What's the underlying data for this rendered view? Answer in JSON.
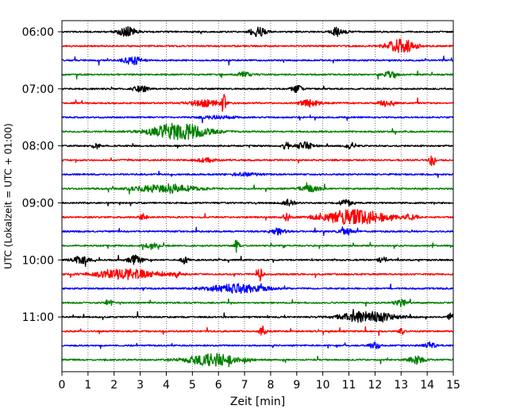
{
  "chart_data": {
    "type": "line",
    "title": "",
    "xlabel": "Zeit  [min]",
    "ylabel": "UTC (Lokalzeit = UTC + 01:00)",
    "xlim": [
      0,
      15
    ],
    "x_ticks": [
      0,
      1,
      2,
      3,
      4,
      5,
      6,
      7,
      8,
      9,
      10,
      11,
      12,
      13,
      14,
      15
    ],
    "x_tick_labels": [
      "0",
      "1",
      "2",
      "3",
      "4",
      "5",
      "6",
      "7",
      "8",
      "9",
      "10",
      "11",
      "12",
      "13",
      "14",
      "15"
    ],
    "y_tick_labels": [
      "06:00",
      "07:00",
      "08:00",
      "09:00",
      "10:00",
      "11:00"
    ],
    "y_tick_traces": [
      0,
      4,
      8,
      12,
      16,
      20
    ],
    "grid": {
      "x": true,
      "y": false,
      "style": "dotted"
    },
    "trace_minutes": 15,
    "colors_cycle": [
      "#000000",
      "#ff0000",
      "#0000ff",
      "#008000"
    ],
    "traces": [
      {
        "start": "06:00",
        "color": "#000000",
        "events": [
          {
            "x": 2.5,
            "amp": 0.5,
            "w": 0.5
          },
          {
            "x": 7.5,
            "amp": 0.55,
            "w": 0.4
          },
          {
            "x": 10.6,
            "amp": 0.5,
            "w": 0.4
          }
        ]
      },
      {
        "start": "06:15",
        "color": "#ff0000",
        "events": [
          {
            "x": 13.0,
            "amp": 0.7,
            "w": 0.8
          }
        ]
      },
      {
        "start": "06:30",
        "color": "#0000ff",
        "events": [
          {
            "x": 2.7,
            "amp": 0.45,
            "w": 0.5
          }
        ]
      },
      {
        "start": "06:45",
        "color": "#008000",
        "events": [
          {
            "x": 7.0,
            "amp": 0.3,
            "w": 0.4
          },
          {
            "x": 12.6,
            "amp": 0.3,
            "w": 0.4
          }
        ]
      },
      {
        "start": "07:00",
        "color": "#000000",
        "events": [
          {
            "x": 3.0,
            "amp": 0.3,
            "w": 0.4
          },
          {
            "x": 9.0,
            "amp": 0.35,
            "w": 0.3
          }
        ]
      },
      {
        "start": "07:15",
        "color": "#ff0000",
        "events": [
          {
            "x": 5.5,
            "amp": 0.35,
            "w": 0.9
          },
          {
            "x": 6.2,
            "amp": 1.3,
            "w": 0.12
          },
          {
            "x": 9.5,
            "amp": 0.35,
            "w": 0.6
          },
          {
            "x": 12.4,
            "amp": 0.3,
            "w": 0.4
          }
        ]
      },
      {
        "start": "07:30",
        "color": "#0000ff",
        "events": [
          {
            "x": 6.0,
            "amp": 0.15,
            "w": 1.0
          }
        ]
      },
      {
        "start": "07:45",
        "color": "#008000",
        "events": [
          {
            "x": 4.5,
            "amp": 0.85,
            "w": 1.6
          }
        ]
      },
      {
        "start": "08:00",
        "color": "#000000",
        "events": [
          {
            "x": 1.3,
            "amp": 0.3,
            "w": 0.2
          },
          {
            "x": 8.6,
            "amp": 0.4,
            "w": 0.2
          },
          {
            "x": 9.3,
            "amp": 0.35,
            "w": 0.5
          },
          {
            "x": 11.1,
            "amp": 0.3,
            "w": 0.3
          }
        ]
      },
      {
        "start": "08:15",
        "color": "#ff0000",
        "events": [
          {
            "x": 5.5,
            "amp": 0.2,
            "w": 0.6
          },
          {
            "x": 14.2,
            "amp": 0.8,
            "w": 0.15
          }
        ]
      },
      {
        "start": "08:30",
        "color": "#0000ff",
        "events": [
          {
            "x": 7.0,
            "amp": 0.15,
            "w": 0.8
          }
        ]
      },
      {
        "start": "08:45",
        "color": "#008000",
        "events": [
          {
            "x": 4.0,
            "amp": 0.45,
            "w": 1.6
          },
          {
            "x": 9.5,
            "amp": 0.3,
            "w": 0.6
          }
        ]
      },
      {
        "start": "09:00",
        "color": "#000000",
        "events": [
          {
            "x": 8.7,
            "amp": 0.35,
            "w": 0.3
          },
          {
            "x": 10.9,
            "amp": 0.3,
            "w": 0.4
          }
        ]
      },
      {
        "start": "09:15",
        "color": "#ff0000",
        "events": [
          {
            "x": 3.1,
            "amp": 0.35,
            "w": 0.2
          },
          {
            "x": 8.6,
            "amp": 0.4,
            "w": 0.2
          },
          {
            "x": 11.2,
            "amp": 0.8,
            "w": 1.8
          },
          {
            "x": 13.4,
            "amp": 0.35,
            "w": 0.3
          }
        ]
      },
      {
        "start": "09:30",
        "color": "#0000ff",
        "events": [
          {
            "x": 8.3,
            "amp": 0.3,
            "w": 0.4
          },
          {
            "x": 10.9,
            "amp": 0.3,
            "w": 0.4
          }
        ]
      },
      {
        "start": "09:45",
        "color": "#008000",
        "events": [
          {
            "x": 3.4,
            "amp": 0.3,
            "w": 0.4
          },
          {
            "x": 6.7,
            "amp": 0.8,
            "w": 0.12
          }
        ]
      },
      {
        "start": "10:00",
        "color": "#000000",
        "events": [
          {
            "x": 0.7,
            "amp": 0.35,
            "w": 0.5
          },
          {
            "x": 2.8,
            "amp": 0.45,
            "w": 0.4
          },
          {
            "x": 4.7,
            "amp": 0.35,
            "w": 0.2
          },
          {
            "x": 12.3,
            "amp": 0.3,
            "w": 0.3
          }
        ]
      },
      {
        "start": "10:15",
        "color": "#ff0000",
        "events": [
          {
            "x": 2.5,
            "amp": 0.5,
            "w": 1.8
          },
          {
            "x": 4.4,
            "amp": 0.3,
            "w": 0.3
          },
          {
            "x": 7.6,
            "amp": 0.7,
            "w": 0.15
          }
        ]
      },
      {
        "start": "10:30",
        "color": "#0000ff",
        "events": [
          {
            "x": 6.7,
            "amp": 0.45,
            "w": 1.6
          }
        ]
      },
      {
        "start": "10:45",
        "color": "#008000",
        "events": [
          {
            "x": 1.8,
            "amp": 0.4,
            "w": 0.2
          },
          {
            "x": 13.0,
            "amp": 0.35,
            "w": 0.4
          }
        ]
      },
      {
        "start": "11:00",
        "color": "#000000",
        "events": [
          {
            "x": 11.7,
            "amp": 0.55,
            "w": 1.5
          },
          {
            "x": 14.9,
            "amp": 0.35,
            "w": 0.15
          }
        ]
      },
      {
        "start": "11:15",
        "color": "#ff0000",
        "events": [
          {
            "x": 7.7,
            "amp": 0.45,
            "w": 0.2
          },
          {
            "x": 13.0,
            "amp": 0.35,
            "w": 0.15
          }
        ]
      },
      {
        "start": "11:30",
        "color": "#0000ff",
        "events": [
          {
            "x": 12.0,
            "amp": 0.35,
            "w": 0.3
          },
          {
            "x": 14.1,
            "amp": 0.3,
            "w": 0.3
          }
        ]
      },
      {
        "start": "11:45",
        "color": "#008000",
        "events": [
          {
            "x": 5.8,
            "amp": 0.6,
            "w": 1.5
          },
          {
            "x": 13.6,
            "amp": 0.45,
            "w": 0.4
          }
        ]
      }
    ]
  }
}
